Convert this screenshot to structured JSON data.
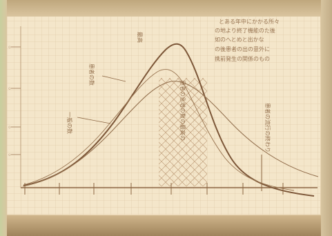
{
  "image": {
    "subject": "handwritten-graph-notebook",
    "colors": {
      "paper": "#f4e6ca",
      "ink": "#8b6542",
      "grid": "#d4b994",
      "hatch": "#b48d67",
      "background": "#cdd6a4"
    }
  },
  "handwriting": {
    "top_right_note": [
      "とある年中にかかる所々",
      "の地より終了機能のた後",
      "如のへとめと出かな",
      "の後患者の出の意外に",
      "携前発生の関係のもの"
    ],
    "curve_label_upper": "患者の数",
    "curve_label_left": "一般の数",
    "center_column_note": "患者の急増の数の最高の",
    "right_note": "患者の流行の終わり",
    "peak_label": "最高"
  }
}
